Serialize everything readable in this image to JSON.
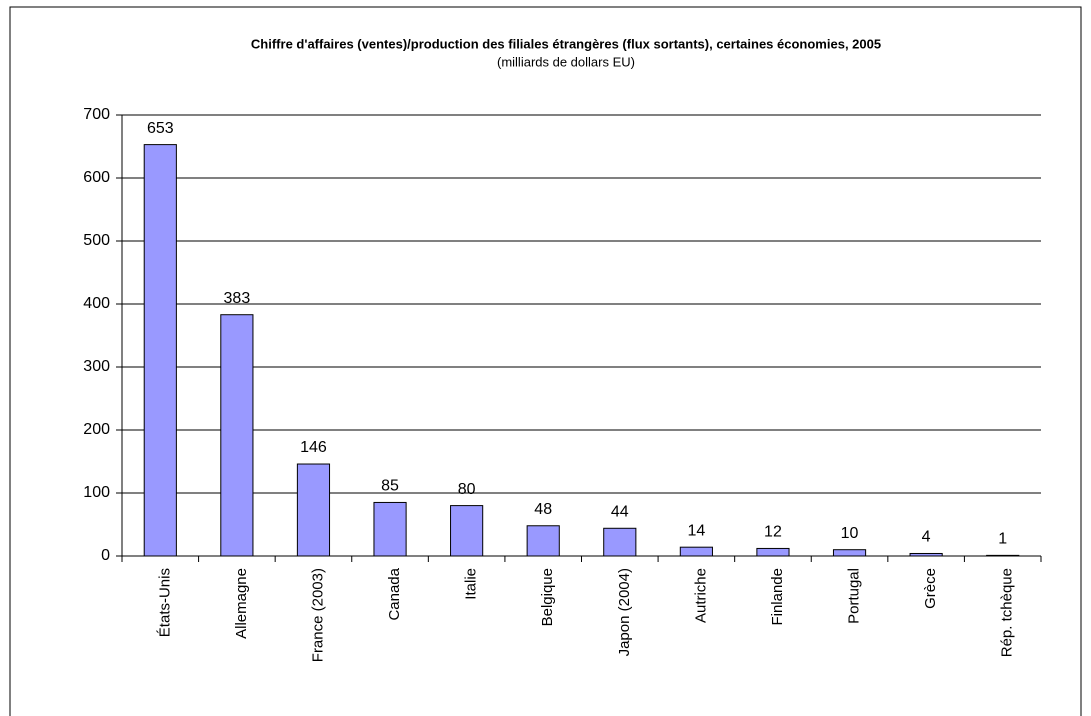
{
  "chart_data": {
    "type": "bar",
    "title": "Chiffre d'affaires (ventes)/production des filiales étrangères (flux sortants), certaines économies, 2005",
    "subtitle": "(milliards de dollars EU)",
    "categories": [
      "États-Unis",
      "Allemagne",
      "France (2003)",
      "Canada",
      "Italie",
      "Belgique",
      "Japon (2004)",
      "Autriche",
      "Finlande",
      "Portugal",
      "Grèce",
      "Rép. tchèque"
    ],
    "values": [
      653,
      383,
      146,
      85,
      80,
      48,
      44,
      14,
      12,
      10,
      4,
      1
    ],
    "color": "#9999ff",
    "ylim": [
      0,
      700
    ],
    "yticks": [
      0,
      100,
      200,
      300,
      400,
      500,
      600,
      700
    ],
    "grid": true
  }
}
